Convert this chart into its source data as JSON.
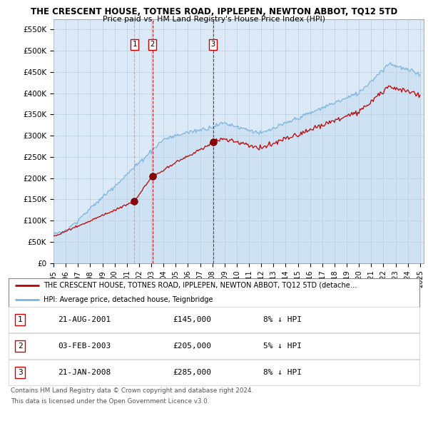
{
  "title": "THE CRESCENT HOUSE, TOTNES ROAD, IPPLEPEN, NEWTON ABBOT, TQ12 5TD",
  "subtitle": "Price paid vs. HM Land Registry's House Price Index (HPI)",
  "ylim": [
    0,
    575000
  ],
  "yticks": [
    0,
    50000,
    100000,
    150000,
    200000,
    250000,
    300000,
    350000,
    400000,
    450000,
    500000,
    550000
  ],
  "ytick_labels": [
    "£0",
    "£50K",
    "£100K",
    "£150K",
    "£200K",
    "£250K",
    "£300K",
    "£350K",
    "£400K",
    "£450K",
    "£500K",
    "£550K"
  ],
  "hpi_color": "#7ab4e0",
  "hpi_fill_color": "#cfe2f3",
  "price_color": "#c00000",
  "sale_marker_color": "#8b0000",
  "vline_colors": [
    "#aaaaaa",
    "#cc0000",
    "#cc0000"
  ],
  "vline_styles": [
    "--",
    "--",
    "--"
  ],
  "plot_bg_color": "#dce9f7",
  "grid_color": "#b8cfe0",
  "sale_prices": [
    145000,
    205000,
    285000
  ],
  "sale_labels": [
    "1",
    "2",
    "3"
  ],
  "sale_info": [
    {
      "label": "1",
      "date": "21-AUG-2001",
      "price": "£145,000",
      "hpi": "8% ↓ HPI"
    },
    {
      "label": "2",
      "date": "03-FEB-2003",
      "price": "£205,000",
      "hpi": "5% ↓ HPI"
    },
    {
      "label": "3",
      "date": "21-JAN-2008",
      "price": "£285,000",
      "hpi": "8% ↓ HPI"
    }
  ],
  "legend_line1": "THE CRESCENT HOUSE, TOTNES ROAD, IPPLEPEN, NEWTON ABBOT, TQ12 5TD (detache…",
  "legend_line2": "HPI: Average price, detached house, Teignbridge",
  "footer1": "Contains HM Land Registry data © Crown copyright and database right 2024.",
  "footer2": "This data is licensed under the Open Government Licence v3.0."
}
